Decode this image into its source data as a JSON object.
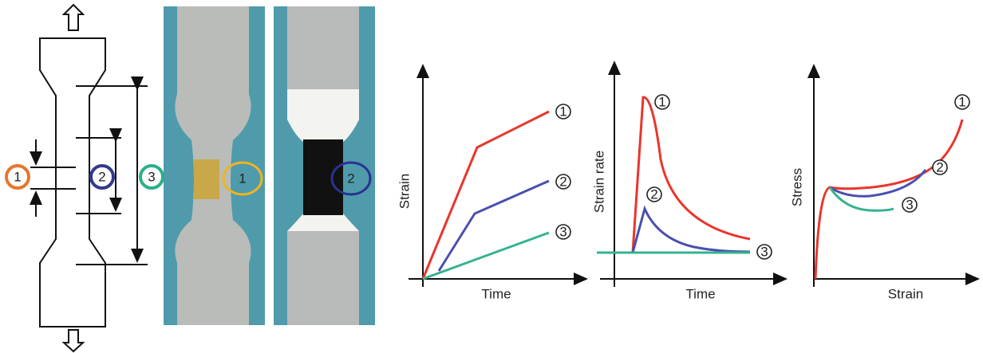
{
  "specimen": {
    "markers": [
      "1",
      "2",
      "3"
    ]
  },
  "photos": [
    {
      "label": "1"
    },
    {
      "label": "2"
    }
  ],
  "plots": [
    {
      "y_label": "Strain",
      "x_label": "Time",
      "curve_labels": [
        "1",
        "2",
        "3"
      ]
    },
    {
      "y_label": "Strain rate",
      "x_label": "Time",
      "curve_labels": [
        "1",
        "2",
        "3"
      ]
    },
    {
      "y_label": "Stress",
      "x_label": "Strain",
      "curve_labels": [
        "1",
        "2",
        "3"
      ]
    }
  ]
}
